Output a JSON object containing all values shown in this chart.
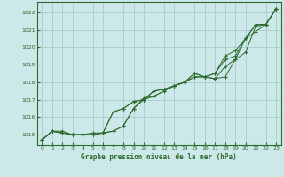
{
  "bg_color": "#cce8e8",
  "grid_color": "#aacccc",
  "line_color": "#2d6a2d",
  "marker_color": "#2d6a2d",
  "xlabel": "Graphe pression niveau de la mer (hPa)",
  "xlabel_color": "#2d6a2d",
  "xlim": [
    -0.5,
    23.5
  ],
  "ylim": [
    1014.4,
    1022.6
  ],
  "yticks": [
    1015,
    1016,
    1017,
    1018,
    1019,
    1020,
    1021,
    1022
  ],
  "xticks": [
    0,
    1,
    2,
    3,
    4,
    5,
    6,
    7,
    8,
    9,
    10,
    11,
    12,
    13,
    14,
    15,
    16,
    17,
    18,
    19,
    20,
    21,
    22,
    23
  ],
  "series": [
    [
      1014.7,
      1015.2,
      1015.2,
      1015.0,
      1015.0,
      1015.1,
      1015.1,
      1015.2,
      1015.5,
      1016.5,
      1017.1,
      1017.2,
      1017.5,
      1017.8,
      1018.0,
      1018.3,
      1018.3,
      1018.2,
      1018.3,
      1019.3,
      1019.7,
      1021.2,
      1021.3,
      1022.2
    ],
    [
      1014.7,
      1015.2,
      1015.1,
      1015.0,
      1015.0,
      1015.0,
      1015.1,
      1015.2,
      1015.5,
      1016.5,
      1017.0,
      1017.2,
      1017.5,
      1017.8,
      1018.0,
      1018.3,
      1018.3,
      1018.2,
      1018.9,
      1019.3,
      1020.5,
      1020.9,
      1021.3,
      1022.2
    ],
    [
      1014.7,
      1015.2,
      1015.1,
      1015.0,
      1015.0,
      1015.0,
      1015.1,
      1016.3,
      1016.5,
      1016.9,
      1017.0,
      1017.5,
      1017.6,
      1017.8,
      1018.0,
      1018.5,
      1018.3,
      1018.5,
      1019.3,
      1019.5,
      1020.5,
      1021.3,
      1021.3,
      1022.2
    ],
    [
      1014.7,
      1015.2,
      1015.1,
      1015.0,
      1015.0,
      1015.0,
      1015.1,
      1016.3,
      1016.5,
      1016.9,
      1017.0,
      1017.5,
      1017.6,
      1017.8,
      1018.0,
      1018.5,
      1018.3,
      1018.5,
      1019.5,
      1019.8,
      1020.5,
      1021.3,
      1021.3,
      1022.2
    ]
  ]
}
